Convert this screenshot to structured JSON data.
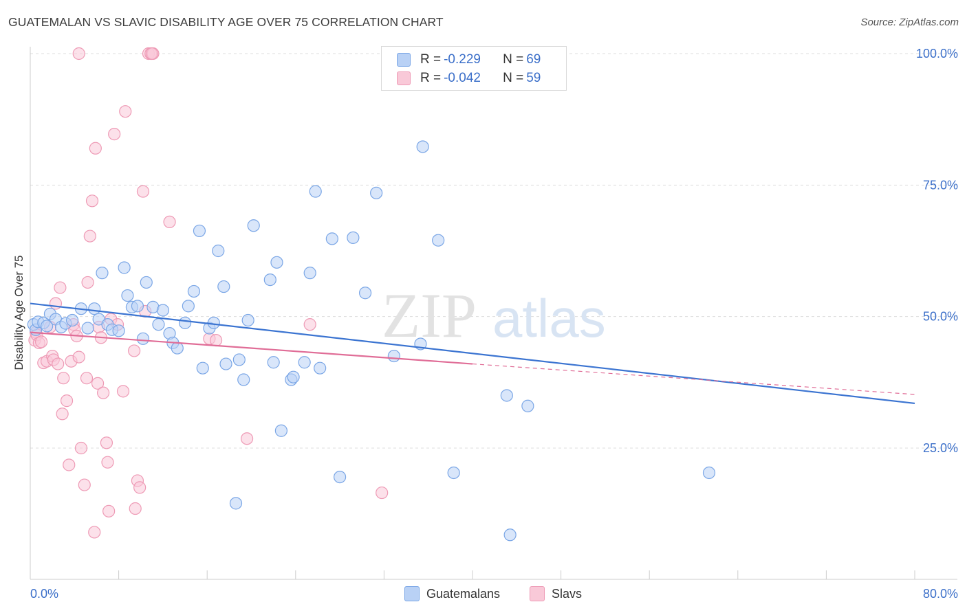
{
  "header": {
    "title": "GUATEMALAN VS SLAVIC DISABILITY AGE OVER 75 CORRELATION CHART",
    "source": "Source: ZipAtlas.com"
  },
  "legend_top": {
    "rows": [
      {
        "r_label": "R = ",
        "r_value": "-0.229",
        "n_label": "N = ",
        "n_value": "69"
      },
      {
        "r_label": "R = ",
        "r_value": "-0.042",
        "n_label": "N = ",
        "n_value": "59"
      }
    ]
  },
  "legend_bottom": {
    "items": [
      {
        "label": "Guatemalans"
      },
      {
        "label": "Slavs"
      }
    ]
  },
  "watermark": {
    "part1": "ZIP",
    "part2": "atlas"
  },
  "colors": {
    "guatemalans_fill": "#b9d1f5",
    "guatemalans_stroke": "#7aa6e6",
    "guatemalans_line": "#3b74d1",
    "slavs_fill": "#f9c9d8",
    "slavs_stroke": "#ee9ab5",
    "slavs_line": "#e06d97",
    "axis_label": "#3b6fc9",
    "grid": "#dddddd"
  },
  "chart_data": {
    "type": "scatter",
    "title": "GUATEMALAN VS SLAVIC DISABILITY AGE OVER 75 CORRELATION CHART",
    "xlabel": "",
    "ylabel": "Disability Age Over 75",
    "xlim": [
      0,
      80
    ],
    "ylim": [
      0,
      105
    ],
    "x_tick_labels": [
      "0.0%",
      "80.0%"
    ],
    "y_ticks": [
      25,
      50,
      75,
      100
    ],
    "y_tick_labels": [
      "25.0%",
      "50.0%",
      "75.0%",
      "100.0%"
    ],
    "grid": true,
    "legend_position": "top-center",
    "series": [
      {
        "name": "Guatemalans",
        "r": -0.229,
        "n": 69,
        "trend": {
          "x0": 0,
          "y0": 52.5,
          "x1": 80,
          "y1": 33.5,
          "dashed_from": 80
        },
        "points": [
          [
            0.3,
            48.5
          ],
          [
            0.5,
            47.5
          ],
          [
            0.7,
            49.0
          ],
          [
            1.2,
            48.8
          ],
          [
            1.5,
            48.2
          ],
          [
            1.8,
            50.5
          ],
          [
            2.3,
            49.5
          ],
          [
            2.8,
            48.0
          ],
          [
            3.2,
            48.7
          ],
          [
            3.8,
            49.3
          ],
          [
            4.6,
            51.5
          ],
          [
            5.2,
            47.8
          ],
          [
            5.8,
            51.5
          ],
          [
            6.2,
            49.5
          ],
          [
            6.5,
            58.3
          ],
          [
            7.0,
            48.5
          ],
          [
            7.4,
            47.5
          ],
          [
            8.0,
            47.3
          ],
          [
            8.5,
            59.3
          ],
          [
            8.8,
            54.0
          ],
          [
            9.2,
            51.8
          ],
          [
            9.7,
            52.0
          ],
          [
            10.2,
            45.8
          ],
          [
            10.5,
            56.5
          ],
          [
            11.1,
            51.8
          ],
          [
            11.6,
            48.5
          ],
          [
            12.0,
            51.2
          ],
          [
            12.6,
            46.8
          ],
          [
            12.9,
            45.0
          ],
          [
            13.3,
            44.0
          ],
          [
            14.0,
            48.8
          ],
          [
            14.3,
            52.0
          ],
          [
            14.8,
            54.8
          ],
          [
            15.3,
            66.3
          ],
          [
            15.6,
            40.2
          ],
          [
            16.2,
            47.8
          ],
          [
            16.6,
            48.8
          ],
          [
            17.0,
            62.5
          ],
          [
            17.5,
            55.7
          ],
          [
            17.7,
            41.0
          ],
          [
            18.6,
            14.5
          ],
          [
            18.9,
            41.8
          ],
          [
            19.3,
            38.0
          ],
          [
            19.7,
            49.3
          ],
          [
            20.2,
            67.3
          ],
          [
            21.7,
            57.0
          ],
          [
            22.0,
            41.3
          ],
          [
            22.3,
            60.3
          ],
          [
            22.7,
            28.3
          ],
          [
            23.6,
            38.0
          ],
          [
            23.8,
            38.5
          ],
          [
            24.8,
            41.3
          ],
          [
            25.3,
            58.3
          ],
          [
            25.8,
            73.8
          ],
          [
            26.2,
            40.2
          ],
          [
            27.3,
            64.8
          ],
          [
            28.0,
            19.5
          ],
          [
            29.2,
            65.0
          ],
          [
            30.3,
            54.5
          ],
          [
            31.3,
            73.5
          ],
          [
            32.9,
            42.5
          ],
          [
            35.3,
            44.8
          ],
          [
            35.5,
            82.3
          ],
          [
            36.9,
            64.5
          ],
          [
            38.3,
            20.3
          ],
          [
            43.1,
            35.0
          ],
          [
            43.4,
            8.5
          ],
          [
            45.0,
            33.0
          ],
          [
            61.4,
            20.3
          ]
        ]
      },
      {
        "name": "Slavs",
        "r": -0.042,
        "n": 59,
        "trend": {
          "x0": 0,
          "y0": 47.0,
          "x1": 40,
          "y1": 41.0,
          "dashed_from": 40,
          "dashed_to_x": 80,
          "dashed_to_y": 35.2
        },
        "points": [
          [
            0.4,
            45.5
          ],
          [
            0.5,
            47.0
          ],
          [
            0.6,
            46.5
          ],
          [
            0.8,
            45.0
          ],
          [
            1.0,
            45.2
          ],
          [
            1.2,
            41.2
          ],
          [
            1.5,
            41.5
          ],
          [
            1.8,
            48.0
          ],
          [
            2.0,
            42.5
          ],
          [
            2.1,
            41.8
          ],
          [
            2.3,
            52.5
          ],
          [
            2.5,
            41.0
          ],
          [
            2.7,
            55.5
          ],
          [
            2.9,
            31.5
          ],
          [
            3.0,
            38.3
          ],
          [
            3.3,
            34.0
          ],
          [
            3.5,
            21.8
          ],
          [
            3.7,
            41.5
          ],
          [
            3.9,
            48.5
          ],
          [
            4.0,
            47.5
          ],
          [
            4.2,
            46.3
          ],
          [
            4.4,
            42.3
          ],
          [
            4.6,
            25.0
          ],
          [
            4.9,
            18.0
          ],
          [
            4.4,
            100.0
          ],
          [
            5.1,
            38.3
          ],
          [
            5.2,
            56.5
          ],
          [
            5.4,
            65.3
          ],
          [
            5.6,
            72.0
          ],
          [
            5.8,
            9.0
          ],
          [
            5.9,
            82.0
          ],
          [
            6.1,
            37.3
          ],
          [
            6.2,
            48.0
          ],
          [
            6.4,
            46.0
          ],
          [
            6.6,
            35.5
          ],
          [
            6.9,
            26.0
          ],
          [
            7.0,
            22.3
          ],
          [
            7.1,
            13.0
          ],
          [
            7.3,
            49.5
          ],
          [
            7.6,
            84.7
          ],
          [
            7.9,
            48.5
          ],
          [
            8.4,
            35.8
          ],
          [
            8.6,
            89.0
          ],
          [
            9.4,
            43.5
          ],
          [
            9.5,
            13.5
          ],
          [
            9.7,
            18.8
          ],
          [
            9.9,
            17.5
          ],
          [
            10.2,
            73.8
          ],
          [
            10.4,
            51.0
          ],
          [
            10.7,
            100.0
          ],
          [
            10.9,
            100.0
          ],
          [
            11.1,
            100.0
          ],
          [
            12.6,
            68.0
          ],
          [
            16.2,
            45.8
          ],
          [
            19.6,
            26.8
          ],
          [
            25.3,
            48.5
          ],
          [
            31.8,
            16.5
          ],
          [
            16.8,
            45.5
          ],
          [
            11.0,
            100.0
          ]
        ]
      }
    ]
  }
}
